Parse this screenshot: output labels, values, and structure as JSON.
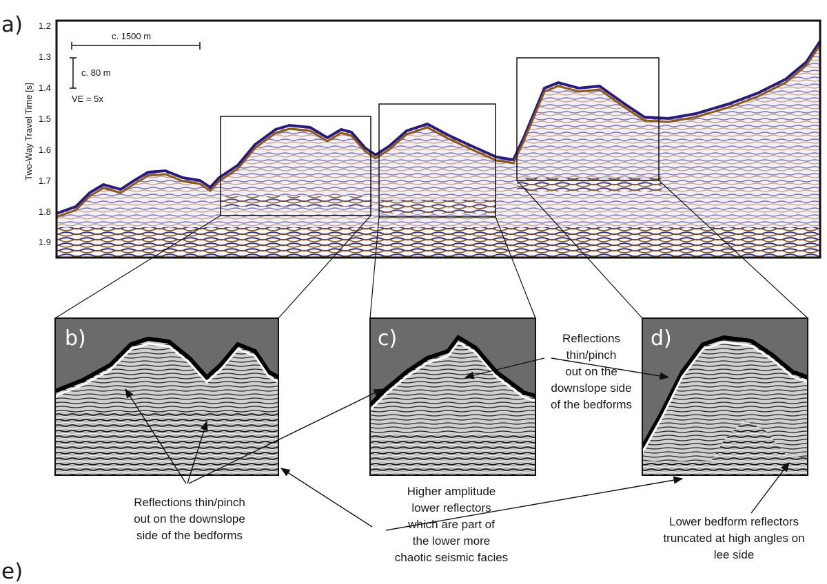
{
  "figure": {
    "panel_a": {
      "letter": "a)",
      "y_axis_label": "Two-Way Travel Time [s]",
      "y_ticks": [
        "1.2",
        "1.3",
        "1.4",
        "1.5",
        "1.6",
        "1.7",
        "1.8",
        "1.9"
      ],
      "horizontal_scale": "c. 1500 m",
      "vertical_scale": "c. 80 m",
      "vertical_exaggeration": "VE = 5x"
    },
    "panel_b": {
      "letter": "b)"
    },
    "panel_c": {
      "letter": "c)"
    },
    "panel_d": {
      "letter": "d)"
    },
    "panel_e": {
      "letter": "e)"
    },
    "annotations": {
      "left": [
        "Reflections thin/pinch",
        "out on the downslope",
        "side of the bedforms"
      ],
      "middle": [
        "Higher amplitude",
        "lower reflectors",
        "which are part of",
        "the lower more",
        "chaotic seismic facies"
      ],
      "upper_right": [
        "Reflections",
        "thin/pinch",
        "out on the",
        "downslope side",
        "of the bedforms"
      ],
      "lower_right": [
        "Lower bedform reflectors",
        "truncated at high angles on",
        "lee side"
      ]
    },
    "colors": {
      "seismic_positive": "#3a2a8a",
      "seismic_negative": "#8a5a1a",
      "inset_background": "#6b6b6b"
    }
  }
}
